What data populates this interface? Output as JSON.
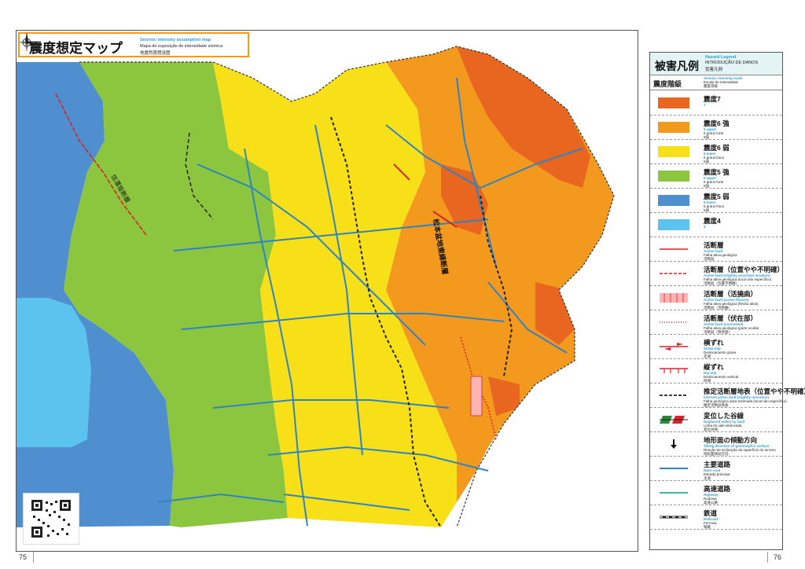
{
  "title": {
    "jp": "震度想定マップ",
    "en": "Seismic intensity assumption map",
    "pt": "Mapa de suposição de intensidade sísmica",
    "zh": "地震烈度假设图"
  },
  "legend": {
    "title_jp": "被害凡例",
    "title_en": "Hazard Legend",
    "title_pt": "INTRODUÇÃO DE DANOS",
    "title_zh": "受害凡例",
    "scale_jp": "震度階級",
    "scale_en": "Seismic intensity scale",
    "scale_pt": "Escala de intensidade",
    "scale_zh": "震度等级",
    "intensity": [
      {
        "name": "震度7",
        "en": "7",
        "pt": "",
        "zh": "",
        "color": "#e8661f"
      },
      {
        "name": "震度6 強",
        "en": "6 upper",
        "pt": "6 graus forte",
        "zh": "6强",
        "color": "#f39a1e"
      },
      {
        "name": "震度6 弱",
        "en": "6 lower",
        "pt": "6 graus fraco",
        "zh": "6弱",
        "color": "#f7e018"
      },
      {
        "name": "震度5 強",
        "en": "5 upper",
        "pt": "5 graus forte",
        "zh": "5强",
        "color": "#8cc63f"
      },
      {
        "name": "震度5 弱",
        "en": "5 lower",
        "pt": "5 graus fraco",
        "zh": "5弱",
        "color": "#4f8fd0"
      },
      {
        "name": "震度4",
        "en": "4",
        "pt": "",
        "zh": "",
        "color": "#5cc3ef"
      }
    ],
    "features": [
      {
        "name": "活断層",
        "en": "Active fault",
        "pt": "Falha ativa geológica",
        "zh": "活断层",
        "sym": "fault"
      },
      {
        "name": "活断層（位置やや不明確）",
        "en": "Active fault (slightly uncertain location)",
        "pt": "Falha ativa geológica (local não específico)",
        "zh": "活断层（位置不明確）",
        "sym": "fault-dash"
      },
      {
        "name": "活断層（活撓曲）",
        "en": "Active fault (active flexure)",
        "pt": "Falha ativa geológica (flexão ativa)",
        "zh": "活断层（活挠曲）",
        "sym": "flexure"
      },
      {
        "name": "活断層（伏在部）",
        "en": "Active fault (concealed)",
        "pt": "Falha ativa geológica (parte oculta)",
        "zh": "活断层（隐伏部）",
        "sym": "fault-dot"
      },
      {
        "name": "横ずれ",
        "en": "Strike-slip",
        "pt": "Deslocamento grave",
        "zh": "走滑",
        "sym": "strike"
      },
      {
        "name": "縦ずれ",
        "en": "Dip-slip",
        "pt": "Deslocamento vertical",
        "zh": "倾滑",
        "sym": "dip"
      },
      {
        "name": "推定活断層地表（位置やや不明確）",
        "en": "Inferred active fault (slightly uncertain)",
        "pt": "Falha geológica ativa estimada (local não específico)",
        "zh": "推定活断层地表",
        "sym": "inferred"
      },
      {
        "name": "変位した谷線",
        "en": "Displaced valley by fault",
        "pt": "Linha do vale deslocada",
        "zh": "变位谷线",
        "sym": "valley"
      },
      {
        "name": "地形面の傾動方向",
        "en": "Tilting direction of geomorphic surface",
        "pt": "Direção de inclinação da superfície do terreno",
        "zh": "地形面倾动方向",
        "sym": "arrow"
      },
      {
        "name": "主要道路",
        "en": "Main road",
        "pt": "Estrada principal",
        "zh": "主道",
        "sym": "road"
      },
      {
        "name": "高速道路",
        "en": "Highway",
        "pt": "Rodovia",
        "zh": "高速公路",
        "sym": "highway"
      },
      {
        "name": "鉄道",
        "en": "Railroad",
        "pt": "Ferrovia",
        "zh": "铁路",
        "sym": "rail"
      }
    ]
  },
  "map_labels": {
    "fault_west": "信濃坂断層",
    "fault_main": "松本盆地東縁断層"
  },
  "pages": {
    "left": "75",
    "right": "76"
  }
}
